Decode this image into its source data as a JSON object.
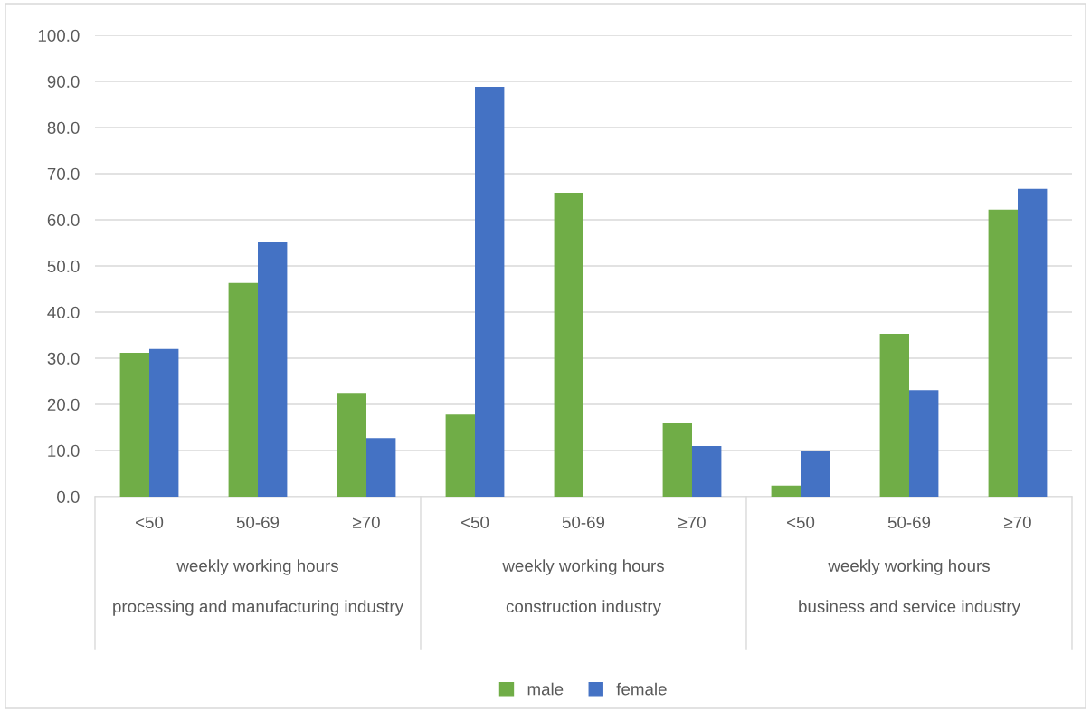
{
  "chart_data": {
    "type": "bar",
    "categories": [
      "<50",
      "50-69",
      "≥70",
      "<50",
      "50-69",
      "≥70",
      "<50",
      "50-69",
      "≥70"
    ],
    "annotations": [
      "weekly working hours",
      "processing and manufacturing industry",
      "weekly working hours",
      "construction industry",
      "weekly working hours",
      "business and service industry"
    ],
    "series": [
      {
        "name": "male",
        "color": "#70ad47",
        "values": [
          31.2,
          46.3,
          22.5,
          17.8,
          65.9,
          15.9,
          2.4,
          35.3,
          62.2
        ]
      },
      {
        "name": "female",
        "color": "#4472c4",
        "values": [
          32.0,
          55.1,
          12.7,
          88.8,
          0,
          11.0,
          10.0,
          23.1,
          66.7
        ]
      }
    ],
    "ylim": [
      0,
      100
    ],
    "yticks": [
      {
        "value": 0,
        "label": "0.0"
      },
      {
        "value": 10,
        "label": "10.0"
      },
      {
        "value": 20,
        "label": "20.0"
      },
      {
        "value": 30,
        "label": "30.0"
      },
      {
        "value": 40,
        "label": "40.0"
      },
      {
        "value": 50,
        "label": "50.0"
      },
      {
        "value": 60,
        "label": "60.0"
      },
      {
        "value": 70,
        "label": "70.0"
      },
      {
        "value": 80,
        "label": "80.0"
      },
      {
        "value": 90,
        "label": "90.0"
      },
      {
        "value": 100,
        "label": "100.0"
      }
    ],
    "grid": "y",
    "legend": "bottom"
  }
}
